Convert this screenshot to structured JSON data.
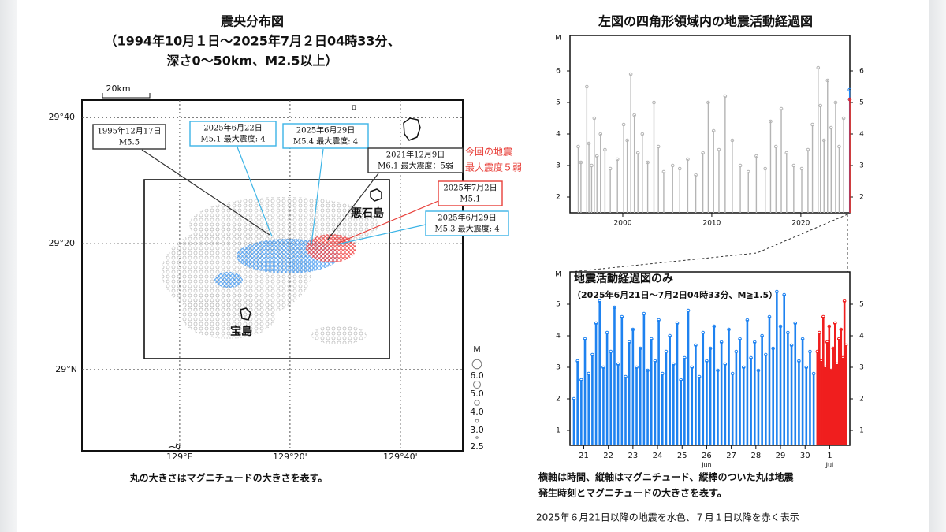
{
  "chart_data": [
    {
      "type": "map",
      "title": "震央分布図",
      "subtitle": [
        "（1994年10月１日～2025年7月２日04時33分、",
        "深さ0～50km、M2.5以上）"
      ],
      "scale_label": "20km",
      "xlim": [
        128.705,
        129.855
      ],
      "ylim": [
        28.785,
        29.713
      ],
      "xticks": [
        {
          "value": 129,
          "label": "129°E"
        },
        {
          "value": 129.3333,
          "label": "129°20'"
        },
        {
          "value": 129.6667,
          "label": "129°40'"
        }
      ],
      "yticks": [
        {
          "value": 29,
          "label": "29°N"
        },
        {
          "value": 29.3333,
          "label": "29°20'"
        },
        {
          "value": 29.6667,
          "label": "29°40'"
        }
      ],
      "grid": true,
      "annotations": [
        {
          "lines": [
            "1995年12月17日",
            "M5.5"
          ],
          "color": "#333333"
        },
        {
          "lines": [
            "2025年6月22日",
            "M5.1 最大震度: 4"
          ],
          "color": "#3cb4e6"
        },
        {
          "lines": [
            "2025年6月29日",
            "M5.4 最大震度: 4"
          ],
          "color": "#3cb4e6"
        },
        {
          "lines": [
            "2021年12月9日",
            "M6.1 最大震度：5弱"
          ],
          "color": "#333333"
        },
        {
          "lines": [
            "今回の地震",
            "最大震度５弱"
          ],
          "color": "#e8403a"
        },
        {
          "lines": [
            "2025年7月2日",
            "M5.1"
          ],
          "color": "#e8403a"
        },
        {
          "lines": [
            "2025年6月29日",
            "M5.3 最大震度: 4"
          ],
          "color": "#3cb4e6"
        }
      ],
      "places": [
        "悪石島",
        "宝島"
      ],
      "size_legend": {
        "title": "M",
        "sizes": [
          {
            "value": 6,
            "label": "6.0"
          },
          {
            "value": 5,
            "label": "5.0"
          },
          {
            "value": 4,
            "label": "4.0"
          },
          {
            "value": 3,
            "label": "3.0"
          },
          {
            "value": 2.5,
            "label": "2.5"
          }
        ]
      },
      "caption": "丸の大きさはマグニチュードの大きさを表す。"
    },
    {
      "type": "bar",
      "title": "左図の四角形領域内の地震活動経過図",
      "ylabel": "M",
      "xlim": [
        1994.07,
        2025.5
      ],
      "ylim": [
        1.5,
        7.125
      ],
      "xticks": [
        2000,
        2010,
        2020
      ],
      "yticks": [
        2,
        3,
        4,
        5,
        6
      ],
      "series": [
        {
          "color": "#b4b4b4",
          "x": [
            1995.0,
            1995.3,
            1995.96,
            1996.2,
            1996.5,
            1996.8,
            1997.1,
            1997.5,
            1998.0,
            1998.6,
            1999.4,
            2000.1,
            2000.5,
            2000.9,
            2001.3,
            2001.7,
            2002.2,
            2002.8,
            2003.5,
            2004.0,
            2004.6,
            2005.6,
            2006.4,
            2007.3,
            2008.2,
            2009.0,
            2009.6,
            2010.2,
            2010.8,
            2011.5,
            2012.3,
            2013.2,
            2014.1,
            2015.0,
            2016.0,
            2016.6,
            2017.2,
            2017.8,
            2018.4,
            2019.2,
            2020.1,
            2020.8,
            2021.3,
            2021.94,
            2022.2,
            2022.6,
            2023.0,
            2023.4,
            2023.9,
            2024.3,
            2024.8
          ],
          "values": [
            3.6,
            3.1,
            5.5,
            3.7,
            3.0,
            4.5,
            3.3,
            4.0,
            3.5,
            2.9,
            3.2,
            4.3,
            3.8,
            5.9,
            4.6,
            3.4,
            4.0,
            3.1,
            5.0,
            3.6,
            2.8,
            3.0,
            2.9,
            3.2,
            2.7,
            3.4,
            5.0,
            4.1,
            3.5,
            5.2,
            3.8,
            3.0,
            2.8,
            3.3,
            2.9,
            4.4,
            3.6,
            4.8,
            3.4,
            3.0,
            2.9,
            3.5,
            4.3,
            6.1,
            4.9,
            3.8,
            5.7,
            4.2,
            5.0,
            3.6,
            4.5
          ]
        },
        {
          "color": "#1e82f0",
          "x": [
            2025.47,
            2025.48
          ],
          "values": [
            5.4,
            5.1
          ]
        },
        {
          "color": "#f01e1e",
          "x": [
            2025.5
          ],
          "values": [
            5.1
          ]
        }
      ]
    },
    {
      "type": "bar",
      "title": "地震活動経過図のみ",
      "subtitle": "（2025年6月21日～7月2日04時33分、M≧1.5）",
      "ylabel": "M",
      "xlim": [
        -0.06,
        11.32
      ],
      "ylim": [
        0.525,
        6.025
      ],
      "yticks": [
        1,
        2,
        3,
        4,
        5
      ],
      "xticks": [
        {
          "value": 0.5,
          "label": "21"
        },
        {
          "value": 1.5,
          "label": "22"
        },
        {
          "value": 2.5,
          "label": "23"
        },
        {
          "value": 3.5,
          "label": "24"
        },
        {
          "value": 4.5,
          "label": "25"
        },
        {
          "value": 5.5,
          "label": "26"
        },
        {
          "value": 6.5,
          "label": "27"
        },
        {
          "value": 7.5,
          "label": "28"
        },
        {
          "value": 8.5,
          "label": "29"
        },
        {
          "value": 9.5,
          "label": "30"
        },
        {
          "value": 10.5,
          "label": "1"
        }
      ],
      "month_labels": [
        {
          "value": 5.5,
          "label": "Jun"
        },
        {
          "value": 10.5,
          "label": "Jul"
        }
      ],
      "series": [
        {
          "color": "#1e82f0",
          "x": [
            0.1,
            0.25,
            0.4,
            0.55,
            0.7,
            0.85,
            1.0,
            1.15,
            1.3,
            1.45,
            1.6,
            1.75,
            1.9,
            2.05,
            2.2,
            2.35,
            2.5,
            2.65,
            2.8,
            2.95,
            3.1,
            3.25,
            3.4,
            3.55,
            3.7,
            3.85,
            4.0,
            4.15,
            4.3,
            4.45,
            4.6,
            4.75,
            4.9,
            5.05,
            5.2,
            5.35,
            5.5,
            5.65,
            5.8,
            5.95,
            6.1,
            6.25,
            6.4,
            6.55,
            6.7,
            6.85,
            7.0,
            7.15,
            7.3,
            7.45,
            7.6,
            7.75,
            7.9,
            8.05,
            8.2,
            8.35,
            8.5,
            8.65,
            8.8,
            8.95,
            9.1,
            9.25,
            9.4,
            9.55,
            9.7,
            9.85
          ],
          "values": [
            2.0,
            3.2,
            2.6,
            3.9,
            2.8,
            3.4,
            4.4,
            5.1,
            3.0,
            4.1,
            3.5,
            4.9,
            3.1,
            4.6,
            2.7,
            3.8,
            4.2,
            3.0,
            3.6,
            4.7,
            2.9,
            3.9,
            3.2,
            4.5,
            2.8,
            3.5,
            4.0,
            3.1,
            4.4,
            2.6,
            3.3,
            4.8,
            3.0,
            3.7,
            2.7,
            4.1,
            3.2,
            3.6,
            4.3,
            2.9,
            3.8,
            3.1,
            4.2,
            2.8,
            3.5,
            3.9,
            3.0,
            4.5,
            3.3,
            3.8,
            2.9,
            4.0,
            3.4,
            4.6,
            3.6,
            5.4,
            4.3,
            5.3,
            4.1,
            3.7,
            4.4,
            3.2,
            3.9,
            3.0,
            3.5,
            2.8
          ]
        },
        {
          "color": "#f01e1e",
          "x": [
            10.0,
            10.08,
            10.16,
            10.24,
            10.32,
            10.4,
            10.48,
            10.56,
            10.64,
            10.72,
            10.8,
            10.88,
            10.96,
            11.04,
            11.1,
            11.16
          ],
          "values": [
            3.5,
            4.1,
            3.2,
            4.6,
            3.0,
            3.8,
            4.3,
            2.9,
            3.6,
            4.4,
            3.1,
            3.9,
            4.2,
            3.3,
            5.1,
            3.7
          ]
        }
      ]
    }
  ],
  "notes": [
    "横軸は時間、縦軸はマグニチュード、縦棒のついた丸は地震",
    "発生時刻とマグニチュードの大きさを表す。",
    "2025年６月21日以降の地震を水色、７月１日以降を赤く表示"
  ]
}
